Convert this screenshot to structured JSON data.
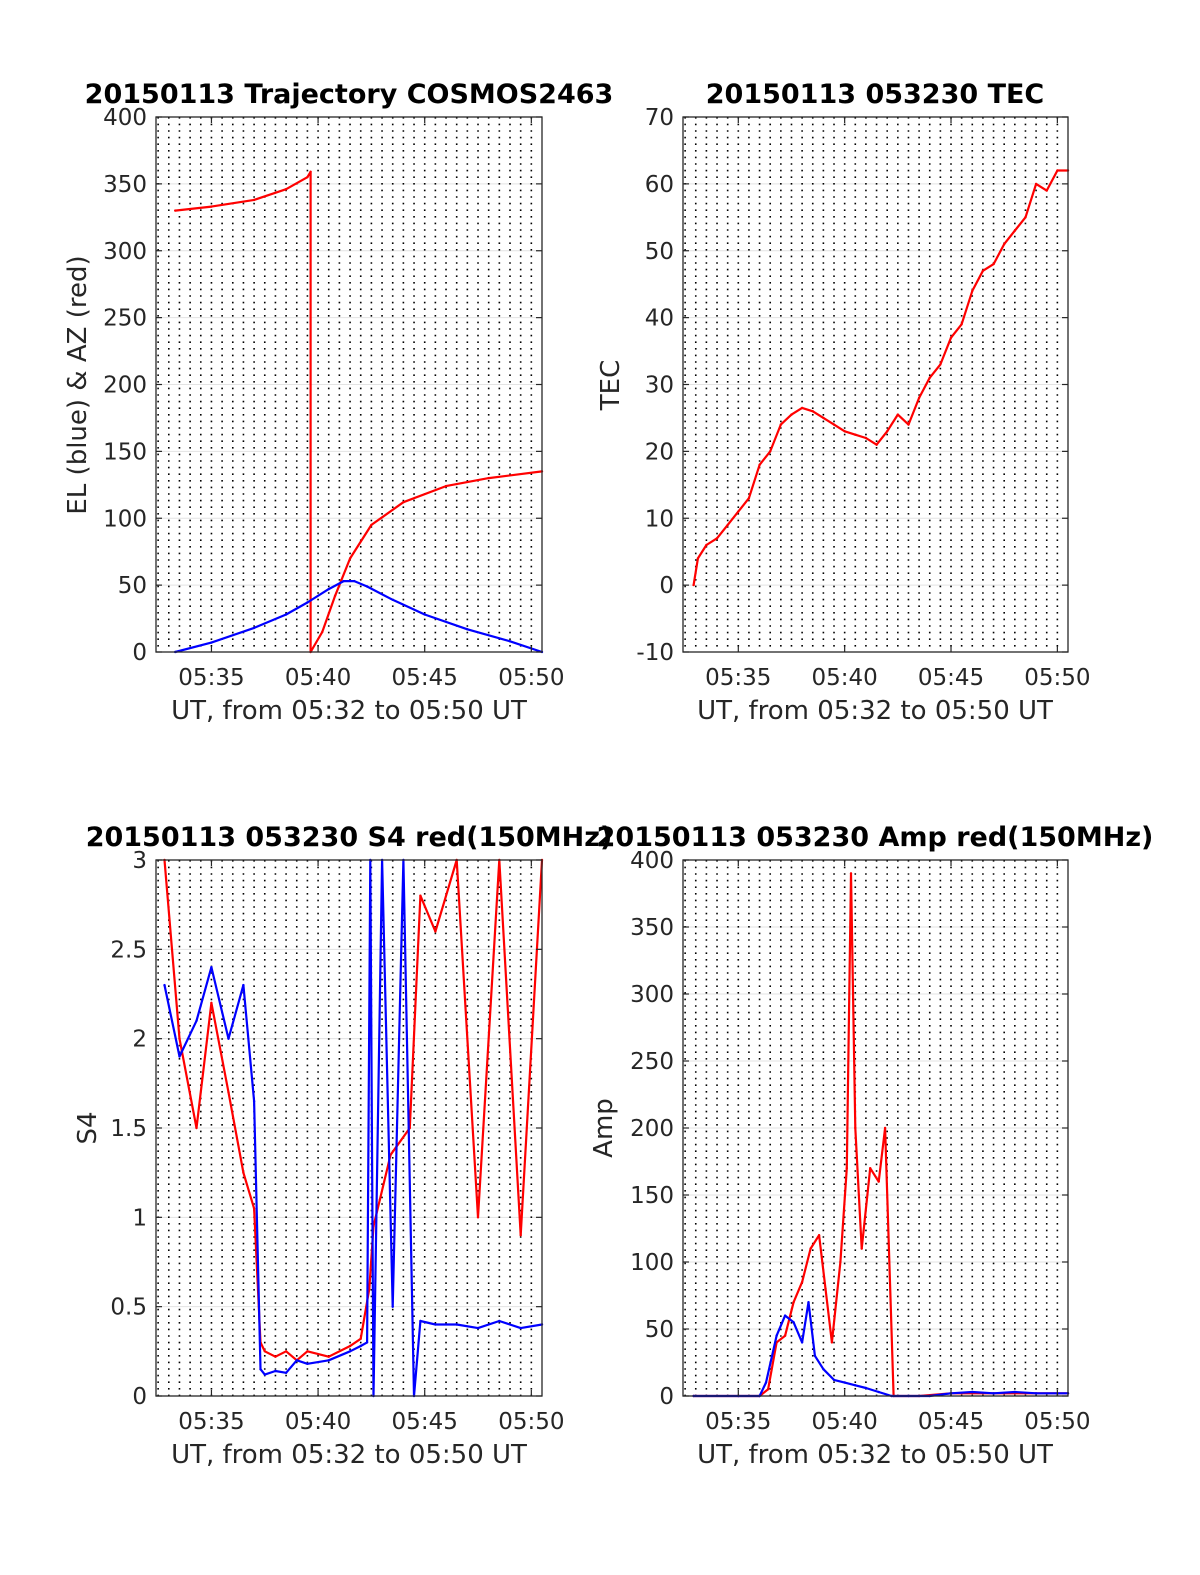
{
  "chart_data": [
    {
      "type": "line",
      "title": "20150113 Trajectory COSMOS2463",
      "xlabel": "UT, from 05:32 to 05:50 UT",
      "ylabel": "EL (blue) & AZ (red)",
      "xlim": [
        5.4,
        23.5
      ],
      "ylim": [
        0,
        400
      ],
      "xticks": [
        {
          "v": 8,
          "label": "05:35"
        },
        {
          "v": 13,
          "label": "05:40"
        },
        {
          "v": 18,
          "label": "05:45"
        },
        {
          "v": 23,
          "label": "05:50"
        }
      ],
      "yticks": [
        {
          "v": 0,
          "label": "0"
        },
        {
          "v": 50,
          "label": "50"
        },
        {
          "v": 100,
          "label": "100"
        },
        {
          "v": 150,
          "label": "150"
        },
        {
          "v": 200,
          "label": "200"
        },
        {
          "v": 250,
          "label": "250"
        },
        {
          "v": 300,
          "label": "300"
        },
        {
          "v": 350,
          "label": "350"
        },
        {
          "v": 400,
          "label": "400"
        }
      ],
      "grid": "dotted vertical every 30 s, light horizontal",
      "series": [
        {
          "color": "#ff0000",
          "x": [
            6.3,
            8.0,
            10.0,
            11.5,
            12.5,
            12.65,
            12.65,
            13.2,
            13.8,
            14.5,
            15.5,
            17.0,
            19.0,
            21.0,
            23.5
          ],
          "values": [
            330,
            333,
            338,
            346,
            355,
            359,
            0,
            15,
            42,
            70,
            95,
            112,
            124,
            130,
            135
          ]
        },
        {
          "color": "#0000ff",
          "x": [
            6.3,
            8.0,
            10.0,
            11.5,
            12.5,
            13.5,
            14.2,
            14.7,
            15.3,
            16.5,
            18.0,
            20.0,
            22.0,
            23.5
          ],
          "values": [
            0,
            7,
            18,
            28,
            37,
            47,
            53,
            53,
            49,
            39,
            28,
            17,
            8,
            0
          ]
        }
      ]
    },
    {
      "type": "line",
      "title": "20150113 053230 TEC",
      "xlabel": "UT, from 05:32 to 05:50 UT",
      "ylabel": "TEC",
      "xlim": [
        5.4,
        23.5
      ],
      "ylim": [
        -10,
        70
      ],
      "xticks": [
        {
          "v": 8,
          "label": "05:35"
        },
        {
          "v": 13,
          "label": "05:40"
        },
        {
          "v": 18,
          "label": "05:45"
        },
        {
          "v": 23,
          "label": "05:50"
        }
      ],
      "yticks": [
        {
          "v": -10,
          "label": "-10"
        },
        {
          "v": 0,
          "label": "0"
        },
        {
          "v": 10,
          "label": "10"
        },
        {
          "v": 20,
          "label": "20"
        },
        {
          "v": 30,
          "label": "30"
        },
        {
          "v": 40,
          "label": "40"
        },
        {
          "v": 50,
          "label": "50"
        },
        {
          "v": 60,
          "label": "60"
        },
        {
          "v": 70,
          "label": "70"
        }
      ],
      "series": [
        {
          "color": "#ff0000",
          "x": [
            5.9,
            6.1,
            6.5,
            7.0,
            7.5,
            8.0,
            8.5,
            9.0,
            9.5,
            10.0,
            10.5,
            11.0,
            11.5,
            12.0,
            12.5,
            13.0,
            13.5,
            14.0,
            14.5,
            15.0,
            15.5,
            16.0,
            16.5,
            17.0,
            17.5,
            18.0,
            18.5,
            19.0,
            19.5,
            20.0,
            20.5,
            21.0,
            21.5,
            22.0,
            22.5,
            23.0,
            23.5
          ],
          "values": [
            0,
            4,
            6,
            7,
            9,
            11,
            13,
            18,
            20,
            24,
            25.5,
            26.5,
            26,
            25,
            24,
            23,
            22.5,
            22,
            21,
            23,
            25.5,
            24,
            28,
            31,
            33,
            37,
            39,
            44,
            47,
            48,
            51,
            53,
            55,
            60,
            59,
            62,
            62
          ]
        }
      ]
    },
    {
      "type": "line",
      "title": "20150113 053230 S4 red(150MHz)",
      "xlabel": "UT, from 05:32 to 05:50 UT",
      "ylabel": "S4",
      "xlim": [
        5.4,
        23.5
      ],
      "ylim": [
        0,
        3
      ],
      "xticks": [
        {
          "v": 8,
          "label": "05:35"
        },
        {
          "v": 13,
          "label": "05:40"
        },
        {
          "v": 18,
          "label": "05:45"
        },
        {
          "v": 23,
          "label": "05:50"
        }
      ],
      "yticks": [
        {
          "v": 0,
          "label": "0"
        },
        {
          "v": 0.5,
          "label": "0.5"
        },
        {
          "v": 1,
          "label": "1"
        },
        {
          "v": 1.5,
          "label": "1.5"
        },
        {
          "v": 2,
          "label": "2"
        },
        {
          "v": 2.5,
          "label": "2.5"
        },
        {
          "v": 3,
          "label": "3"
        }
      ],
      "series": [
        {
          "color": "#ff0000",
          "x": [
            5.8,
            6.5,
            7.3,
            8.0,
            8.8,
            9.5,
            10.0,
            10.3,
            10.5,
            11.0,
            11.5,
            12.0,
            12.5,
            13.5,
            14.5,
            15.0,
            15.4,
            15.6,
            15.9,
            16.4,
            17.3,
            17.8,
            18.5,
            19.5,
            20.5,
            21.5,
            22.5,
            23.5
          ],
          "values": [
            3,
            2.0,
            1.5,
            2.2,
            1.7,
            1.25,
            1.05,
            0.3,
            0.25,
            0.22,
            0.25,
            0.2,
            0.25,
            0.22,
            0.28,
            0.32,
            0.6,
            0.95,
            1.1,
            1.35,
            1.5,
            2.8,
            2.6,
            3,
            1.0,
            3,
            0.9,
            3
          ]
        },
        {
          "color": "#0000ff",
          "x": [
            5.8,
            6.5,
            7.3,
            8.0,
            8.8,
            9.5,
            10.0,
            10.3,
            10.5,
            11.0,
            11.5,
            12.0,
            12.5,
            13.5,
            14.5,
            15.0,
            15.3,
            15.45,
            15.6,
            16.0,
            16.5,
            17.0,
            17.5,
            17.8,
            18.5,
            19.5,
            20.5,
            21.5,
            22.5,
            23.5
          ],
          "values": [
            2.3,
            1.9,
            2.1,
            2.4,
            2.0,
            2.3,
            1.65,
            0.15,
            0.12,
            0.14,
            0.13,
            0.2,
            0.18,
            0.2,
            0.25,
            0.28,
            0.3,
            3,
            0,
            3,
            0.5,
            3,
            0,
            0.42,
            0.4,
            0.4,
            0.38,
            0.42,
            0.38,
            0.4
          ]
        }
      ]
    },
    {
      "type": "line",
      "title": "20150113 053230 Amp red(150MHz)",
      "xlabel": "UT, from 05:32 to 05:50 UT",
      "ylabel": "Amp",
      "xlim": [
        5.4,
        23.5
      ],
      "ylim": [
        0,
        400
      ],
      "xticks": [
        {
          "v": 8,
          "label": "05:35"
        },
        {
          "v": 13,
          "label": "05:40"
        },
        {
          "v": 18,
          "label": "05:45"
        },
        {
          "v": 23,
          "label": "05:50"
        }
      ],
      "yticks": [
        {
          "v": 0,
          "label": "0"
        },
        {
          "v": 50,
          "label": "50"
        },
        {
          "v": 100,
          "label": "100"
        },
        {
          "v": 150,
          "label": "150"
        },
        {
          "v": 200,
          "label": "200"
        },
        {
          "v": 250,
          "label": "250"
        },
        {
          "v": 300,
          "label": "300"
        },
        {
          "v": 350,
          "label": "350"
        },
        {
          "v": 400,
          "label": "400"
        }
      ],
      "series": [
        {
          "color": "#ff0000",
          "x": [
            5.9,
            8.0,
            9.0,
            9.4,
            9.8,
            10.2,
            10.6,
            11.0,
            11.4,
            11.8,
            12.1,
            12.4,
            12.8,
            13.1,
            13.3,
            13.5,
            13.8,
            14.2,
            14.6,
            14.9,
            15.3,
            16.5,
            18.0,
            23.5
          ],
          "values": [
            0,
            0,
            0,
            5,
            40,
            45,
            70,
            85,
            110,
            120,
            80,
            40,
            100,
            170,
            390,
            200,
            110,
            170,
            160,
            200,
            0,
            0,
            2,
            2
          ]
        },
        {
          "color": "#0000ff",
          "x": [
            5.9,
            8.0,
            9.0,
            9.3,
            9.8,
            10.2,
            10.6,
            11.0,
            11.3,
            11.6,
            12.0,
            12.5,
            13.0,
            13.5,
            14.0,
            14.6,
            15.2,
            16.0,
            17.0,
            18.0,
            19.0,
            20.0,
            21.0,
            22.0,
            23.5
          ],
          "values": [
            0,
            0,
            0,
            10,
            45,
            60,
            55,
            40,
            70,
            30,
            20,
            12,
            10,
            8,
            6,
            3,
            0,
            0,
            0,
            2,
            3,
            2,
            3,
            2,
            2
          ]
        }
      ]
    }
  ]
}
